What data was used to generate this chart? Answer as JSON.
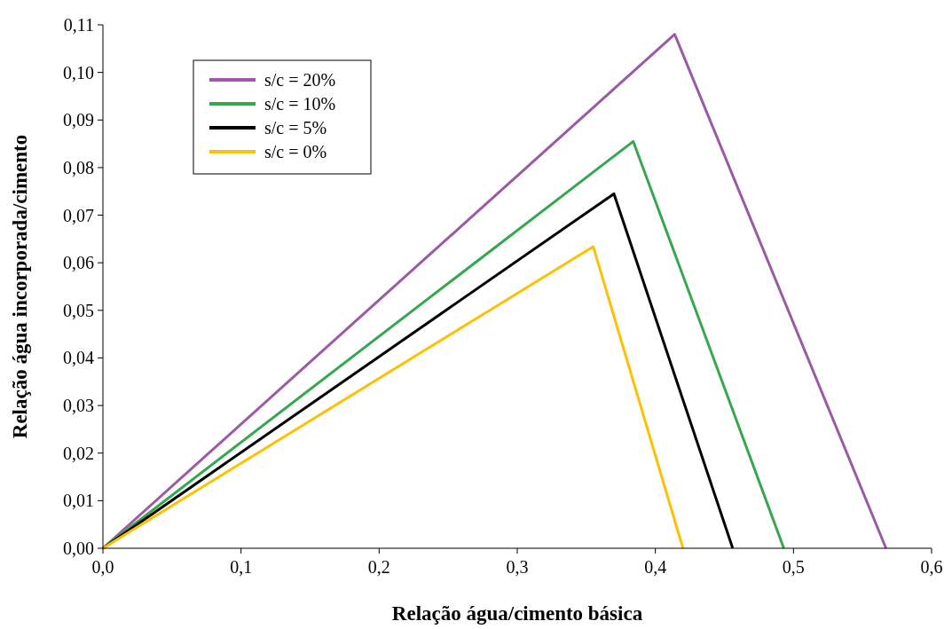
{
  "chart_data": {
    "type": "line",
    "xlabel": "Relação água/cimento básica",
    "ylabel": "Relação água incorporada/cimento",
    "xlim": [
      0,
      0.6
    ],
    "ylim": [
      0,
      0.11
    ],
    "xticks": [
      {
        "value": 0,
        "label": "0,0"
      },
      {
        "value": 0.1,
        "label": "0,1"
      },
      {
        "value": 0.2,
        "label": "0,2"
      },
      {
        "value": 0.3,
        "label": "0,3"
      },
      {
        "value": 0.4,
        "label": "0,4"
      },
      {
        "value": 0.5,
        "label": "0,5"
      },
      {
        "value": 0.6,
        "label": "0,6"
      }
    ],
    "yticks": [
      {
        "value": 0,
        "label": "0,00"
      },
      {
        "value": 0.01,
        "label": "0,01"
      },
      {
        "value": 0.02,
        "label": "0,02"
      },
      {
        "value": 0.03,
        "label": "0,03"
      },
      {
        "value": 0.04,
        "label": "0,04"
      },
      {
        "value": 0.05,
        "label": "0,05"
      },
      {
        "value": 0.06,
        "label": "0,06"
      },
      {
        "value": 0.07,
        "label": "0,07"
      },
      {
        "value": 0.08,
        "label": "0,08"
      },
      {
        "value": 0.09,
        "label": "0,09"
      },
      {
        "value": 0.1,
        "label": "0,10"
      },
      {
        "value": 0.11,
        "label": "0,11"
      }
    ],
    "legend": "top left",
    "grid": false,
    "marker": "none",
    "line_style": "solid",
    "series": [
      {
        "name": "s/c = 20%",
        "color": "#9b59a6",
        "x": [
          0,
          0.414,
          0.567
        ],
        "values": [
          0,
          0.108,
          0
        ]
      },
      {
        "name": "s/c = 10%",
        "color": "#35a74f",
        "x": [
          0,
          0.384,
          0.493
        ],
        "values": [
          0,
          0.0855,
          0
        ]
      },
      {
        "name": "s/c = 5%",
        "color": "#000000",
        "x": [
          0,
          0.37,
          0.456
        ],
        "values": [
          0,
          0.0745,
          0
        ]
      },
      {
        "name": "s/c = 0%",
        "color": "#ffc000",
        "x": [
          0,
          0.355,
          0.42
        ],
        "values": [
          0,
          0.0634,
          0
        ]
      }
    ]
  }
}
